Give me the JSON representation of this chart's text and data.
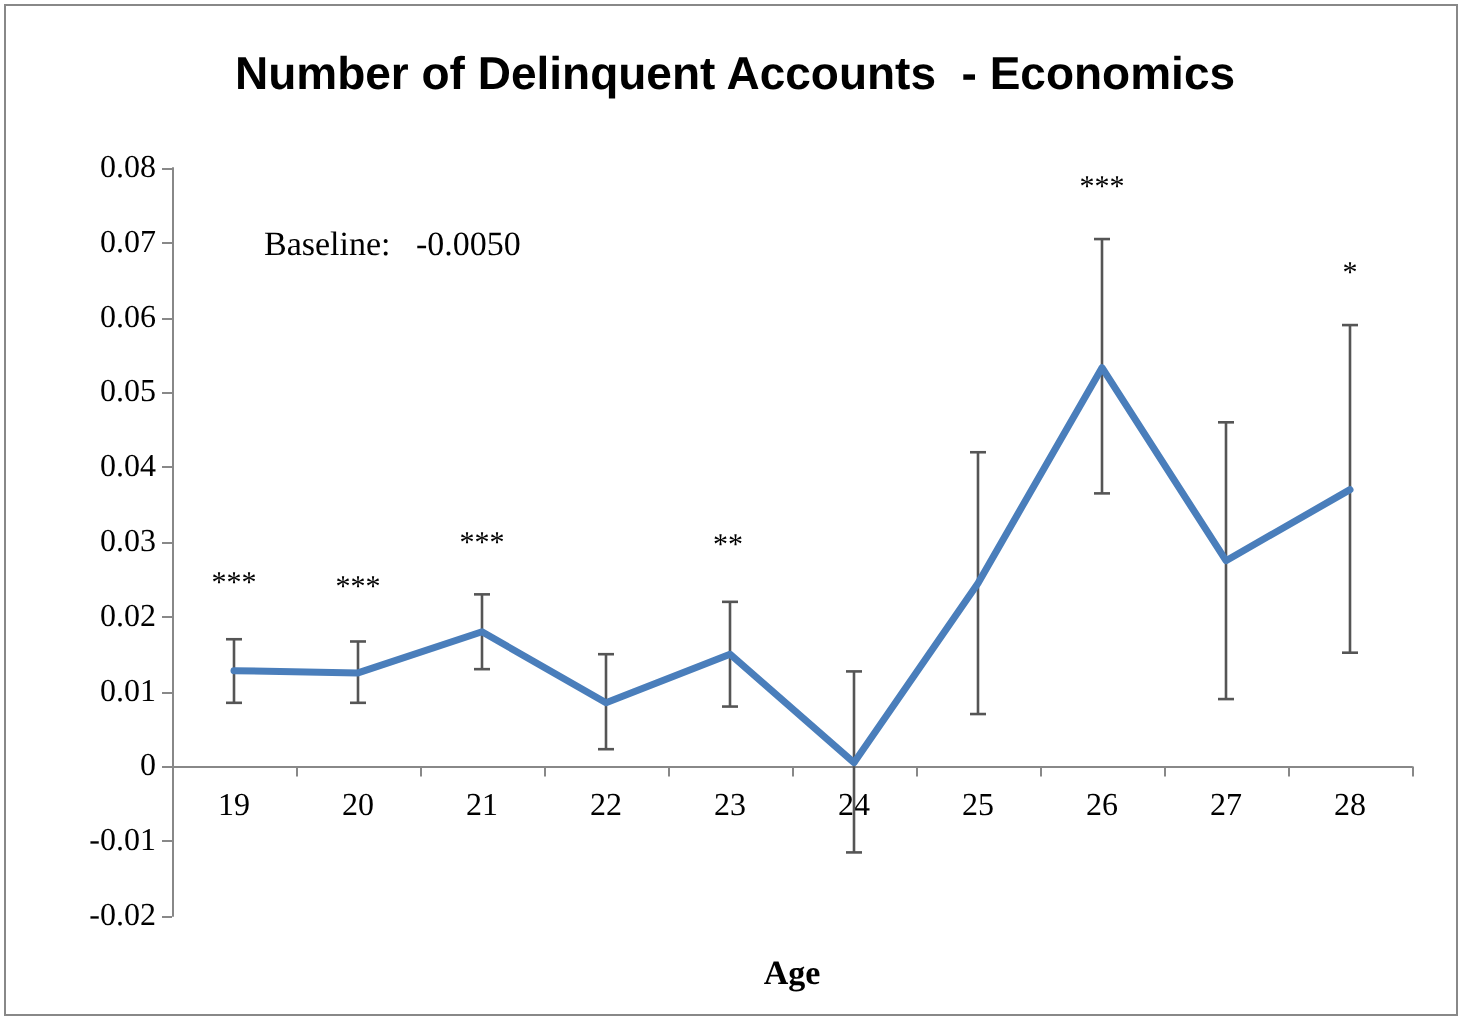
{
  "chart_data": {
    "type": "line",
    "title": "Number of Delinquent Accounts  - Economics",
    "xlabel": "Age",
    "categories": [
      "19",
      "20",
      "21",
      "22",
      "23",
      "24",
      "25",
      "26",
      "27",
      "28"
    ],
    "series": [
      {
        "color": "#4a7ebb",
        "values": [
          0.0128,
          0.0125,
          0.018,
          0.0085,
          0.015,
          0.0005,
          0.0245,
          0.0533,
          0.0275,
          0.037
        ],
        "errors": [
          [
            0.0085,
            0.017
          ],
          [
            0.0085,
            0.0167
          ],
          [
            0.013,
            0.023
          ],
          [
            0.0023,
            0.015
          ],
          [
            0.008,
            0.022
          ],
          [
            -0.0115,
            0.0127
          ],
          [
            0.007,
            0.042
          ],
          [
            0.0365,
            0.0705
          ],
          [
            0.009,
            0.046
          ],
          [
            0.0152,
            0.059
          ]
        ]
      }
    ],
    "ylim": [
      -0.02,
      0.08
    ],
    "yticks": [
      -0.02,
      -0.01,
      0,
      0.01,
      0.02,
      0.03,
      0.04,
      0.05,
      0.06,
      0.07,
      0.08
    ],
    "annotations": [
      "Baseline:   -0.0050",
      "***",
      "***",
      "***",
      "**",
      "***",
      "*"
    ],
    "grid": false,
    "marker": "none",
    "line_style": "solid"
  }
}
